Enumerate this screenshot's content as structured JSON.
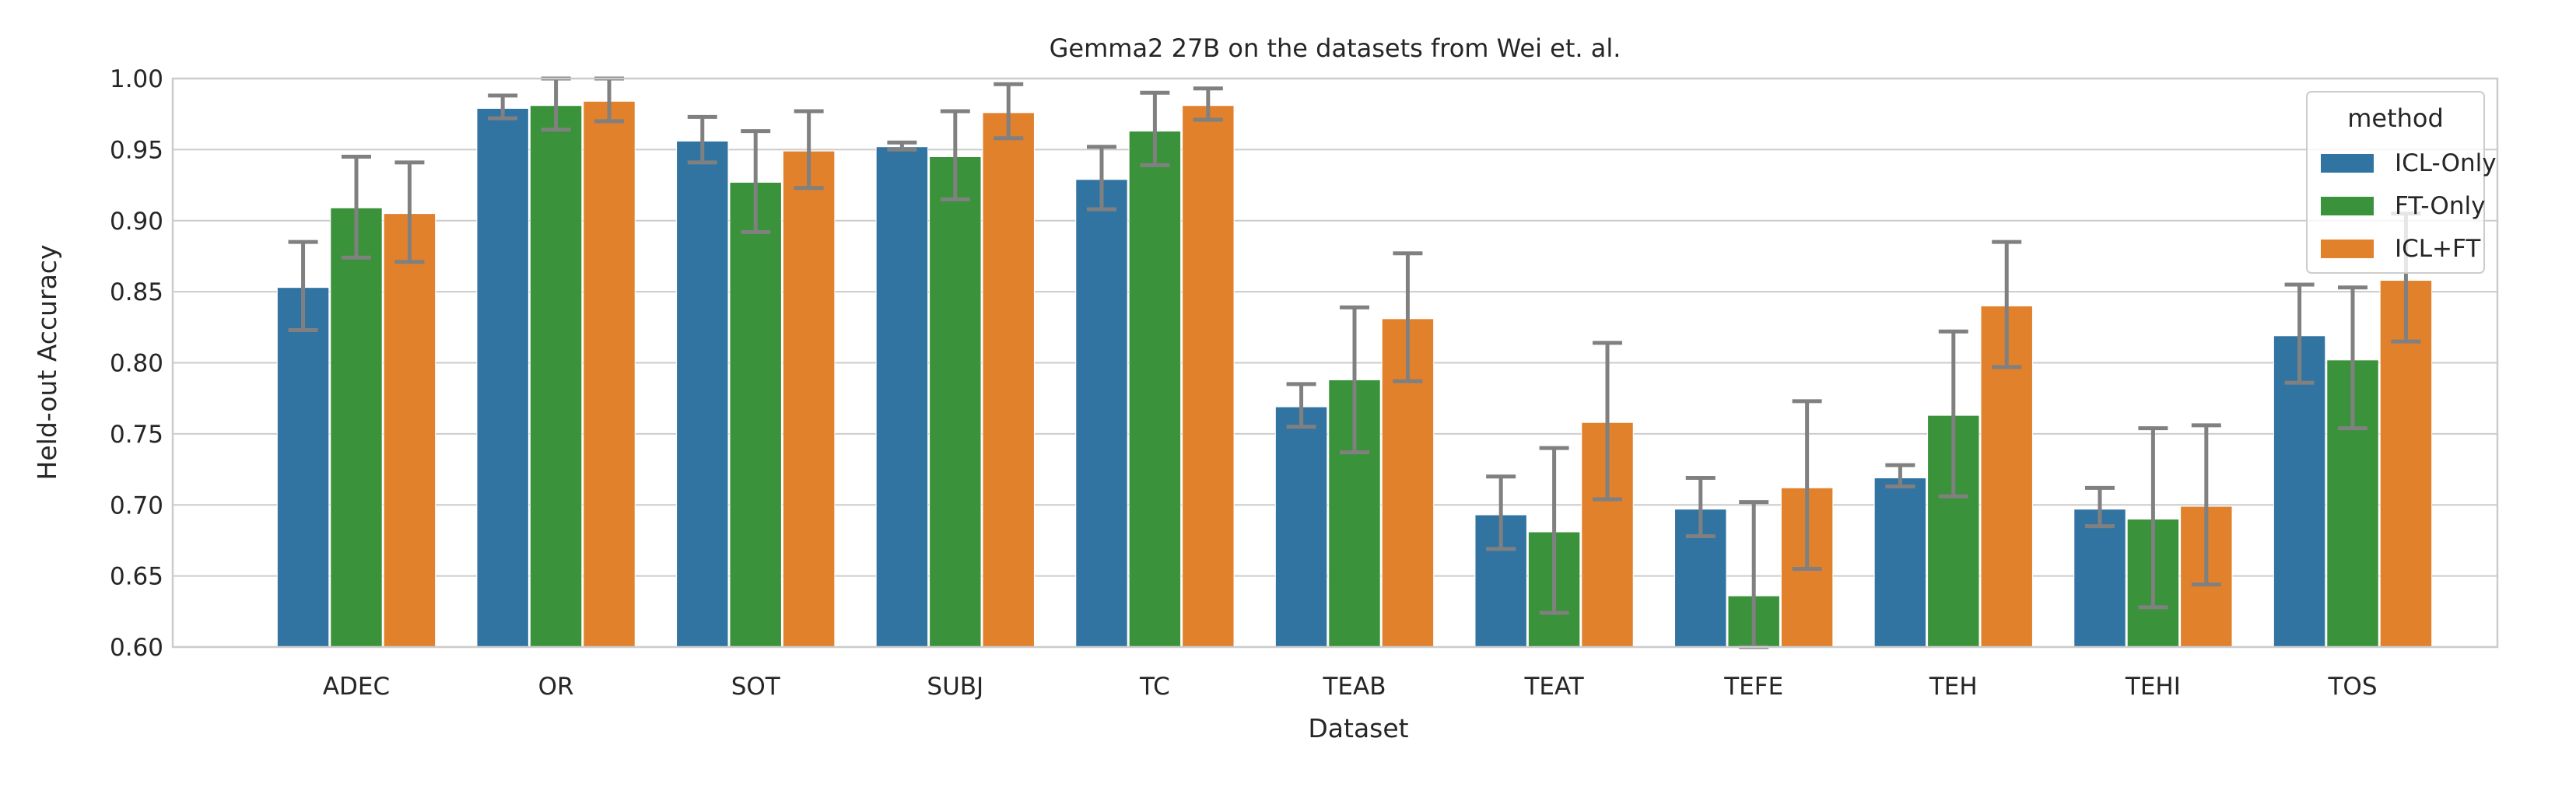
{
  "chart_data": {
    "type": "bar",
    "title": "Gemma2 27B on the datasets from Wei et. al.",
    "xlabel": "Dataset",
    "ylabel": "Held-out Accuracy",
    "ylim": [
      0.6,
      1.0
    ],
    "yticks": [
      "0.60",
      "0.65",
      "0.70",
      "0.75",
      "0.80",
      "0.85",
      "0.90",
      "0.95",
      "1.00"
    ],
    "grid": true,
    "legend": {
      "title": "method",
      "placement": "top-right"
    },
    "categories": [
      "ADEC",
      "OR",
      "SOT",
      "SUBJ",
      "TC",
      "TEAB",
      "TEAT",
      "TEFE",
      "TEH",
      "TEHI",
      "TOS"
    ],
    "series": [
      {
        "name": "ICL-Only",
        "color": "#3274a1",
        "values": [
          0.853,
          0.979,
          0.956,
          0.952,
          0.929,
          0.769,
          0.693,
          0.697,
          0.719,
          0.697,
          0.819
        ],
        "err_low": [
          0.823,
          0.972,
          0.941,
          0.95,
          0.908,
          0.755,
          0.669,
          0.678,
          0.713,
          0.685,
          0.786
        ],
        "err_high": [
          0.885,
          0.988,
          0.973,
          0.955,
          0.952,
          0.785,
          0.72,
          0.719,
          0.728,
          0.712,
          0.855
        ]
      },
      {
        "name": "FT-Only",
        "color": "#3a923a",
        "values": [
          0.909,
          0.981,
          0.927,
          0.945,
          0.963,
          0.788,
          0.681,
          0.636,
          0.763,
          0.69,
          0.802
        ],
        "err_low": [
          0.874,
          0.964,
          0.892,
          0.915,
          0.939,
          0.737,
          0.624,
          0.6,
          0.706,
          0.628,
          0.754
        ],
        "err_high": [
          0.945,
          1.0,
          0.963,
          0.977,
          0.99,
          0.839,
          0.74,
          0.702,
          0.822,
          0.754,
          0.853
        ]
      },
      {
        "name": "ICL+FT",
        "color": "#e1812c",
        "values": [
          0.905,
          0.984,
          0.949,
          0.976,
          0.981,
          0.831,
          0.758,
          0.712,
          0.84,
          0.699,
          0.858
        ],
        "err_low": [
          0.871,
          0.97,
          0.923,
          0.958,
          0.971,
          0.787,
          0.704,
          0.655,
          0.797,
          0.644,
          0.815
        ],
        "err_high": [
          0.941,
          1.0,
          0.977,
          0.996,
          0.993,
          0.877,
          0.814,
          0.773,
          0.885,
          0.756,
          0.905
        ]
      }
    ]
  }
}
